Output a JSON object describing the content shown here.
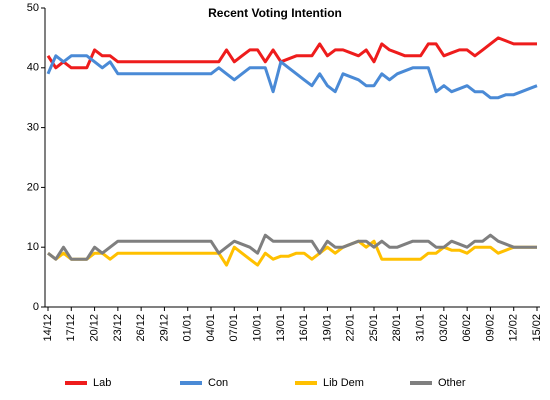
{
  "chart_data": {
    "type": "line",
    "title": "Recent Voting Intention",
    "categories": [
      "14/12",
      null,
      null,
      "17/12",
      null,
      null,
      "20/12",
      null,
      null,
      "23/12",
      null,
      null,
      "26/12",
      null,
      null,
      "29/12",
      null,
      null,
      "01/01",
      null,
      null,
      "04/01",
      null,
      null,
      "07/01",
      null,
      null,
      "10/01",
      null,
      null,
      "13/01",
      null,
      null,
      "16/01",
      null,
      null,
      "19/01",
      null,
      null,
      "22/01",
      null,
      null,
      "25/01",
      null,
      null,
      "28/01",
      null,
      null,
      "31/01",
      null,
      null,
      "03/02",
      null,
      null,
      "06/02",
      null,
      null,
      "09/02",
      null,
      null,
      "12/02",
      null,
      null,
      "15/02"
    ],
    "series": [
      {
        "name": "Lab",
        "color": "#ee1c1c",
        "values": [
          42,
          40,
          41,
          40,
          40,
          40,
          43,
          42,
          42,
          41,
          41,
          41,
          41,
          41,
          41,
          41,
          41,
          41,
          41,
          41,
          41,
          41,
          41,
          43,
          41,
          42,
          43,
          43,
          41,
          43,
          41,
          41.5,
          42,
          42,
          42,
          44,
          42,
          43,
          43,
          42.5,
          42,
          43,
          41,
          44,
          43,
          42.5,
          42,
          42,
          42,
          44,
          44,
          42,
          42.5,
          43,
          43,
          42,
          43,
          44,
          45,
          44.5,
          44,
          44,
          44,
          44
        ]
      },
      {
        "name": "Con",
        "color": "#4a8ad6",
        "values": [
          39,
          42,
          41,
          42,
          42,
          42,
          41,
          40,
          41,
          39,
          39,
          39,
          39,
          39,
          39,
          39,
          39,
          39,
          39,
          39,
          39,
          39,
          40,
          39,
          38,
          39,
          40,
          40,
          40,
          36,
          41,
          40,
          39,
          38,
          37,
          39,
          37,
          36,
          39,
          38.5,
          38,
          37,
          37,
          39,
          38,
          39,
          39.5,
          40,
          40,
          40,
          36,
          37,
          36,
          36.5,
          37,
          36,
          36,
          35,
          35,
          35.5,
          35.5,
          36,
          36.5,
          37
        ]
      },
      {
        "name": "Lib Dem",
        "color": "#ffc000",
        "values": [
          9,
          8,
          9,
          8,
          8,
          8,
          9,
          9,
          8,
          9,
          9,
          9,
          9,
          9,
          9,
          9,
          9,
          9,
          9,
          9,
          9,
          9,
          9,
          7,
          10,
          9,
          8,
          7,
          9,
          8,
          8.5,
          8.5,
          9,
          9,
          8,
          9,
          10,
          9,
          10,
          10.5,
          11,
          10,
          11,
          8,
          8,
          8,
          8,
          8,
          8,
          9,
          9,
          10,
          9.5,
          9.5,
          9,
          10,
          10,
          10,
          9,
          9.5,
          10,
          10,
          10,
          10
        ]
      },
      {
        "name": "Other",
        "color": "#7f7f7f",
        "values": [
          9,
          8,
          10,
          8,
          8,
          8,
          10,
          9,
          10,
          11,
          11,
          11,
          11,
          11,
          11,
          11,
          11,
          11,
          11,
          11,
          11,
          11,
          9,
          10,
          11,
          10.5,
          10,
          9,
          12,
          11,
          11,
          11,
          11,
          11,
          11,
          9,
          11,
          10,
          10,
          10.5,
          11,
          11,
          10,
          11,
          10,
          10,
          10.5,
          11,
          11,
          11,
          10,
          10,
          11,
          10.5,
          10,
          11,
          11,
          12,
          11,
          10.5,
          10,
          10,
          10,
          10
        ]
      }
    ],
    "ylim": [
      0,
      50
    ],
    "yticks": [
      0,
      10,
      20,
      30,
      40,
      50
    ],
    "grid": false,
    "legend": "bottom"
  }
}
